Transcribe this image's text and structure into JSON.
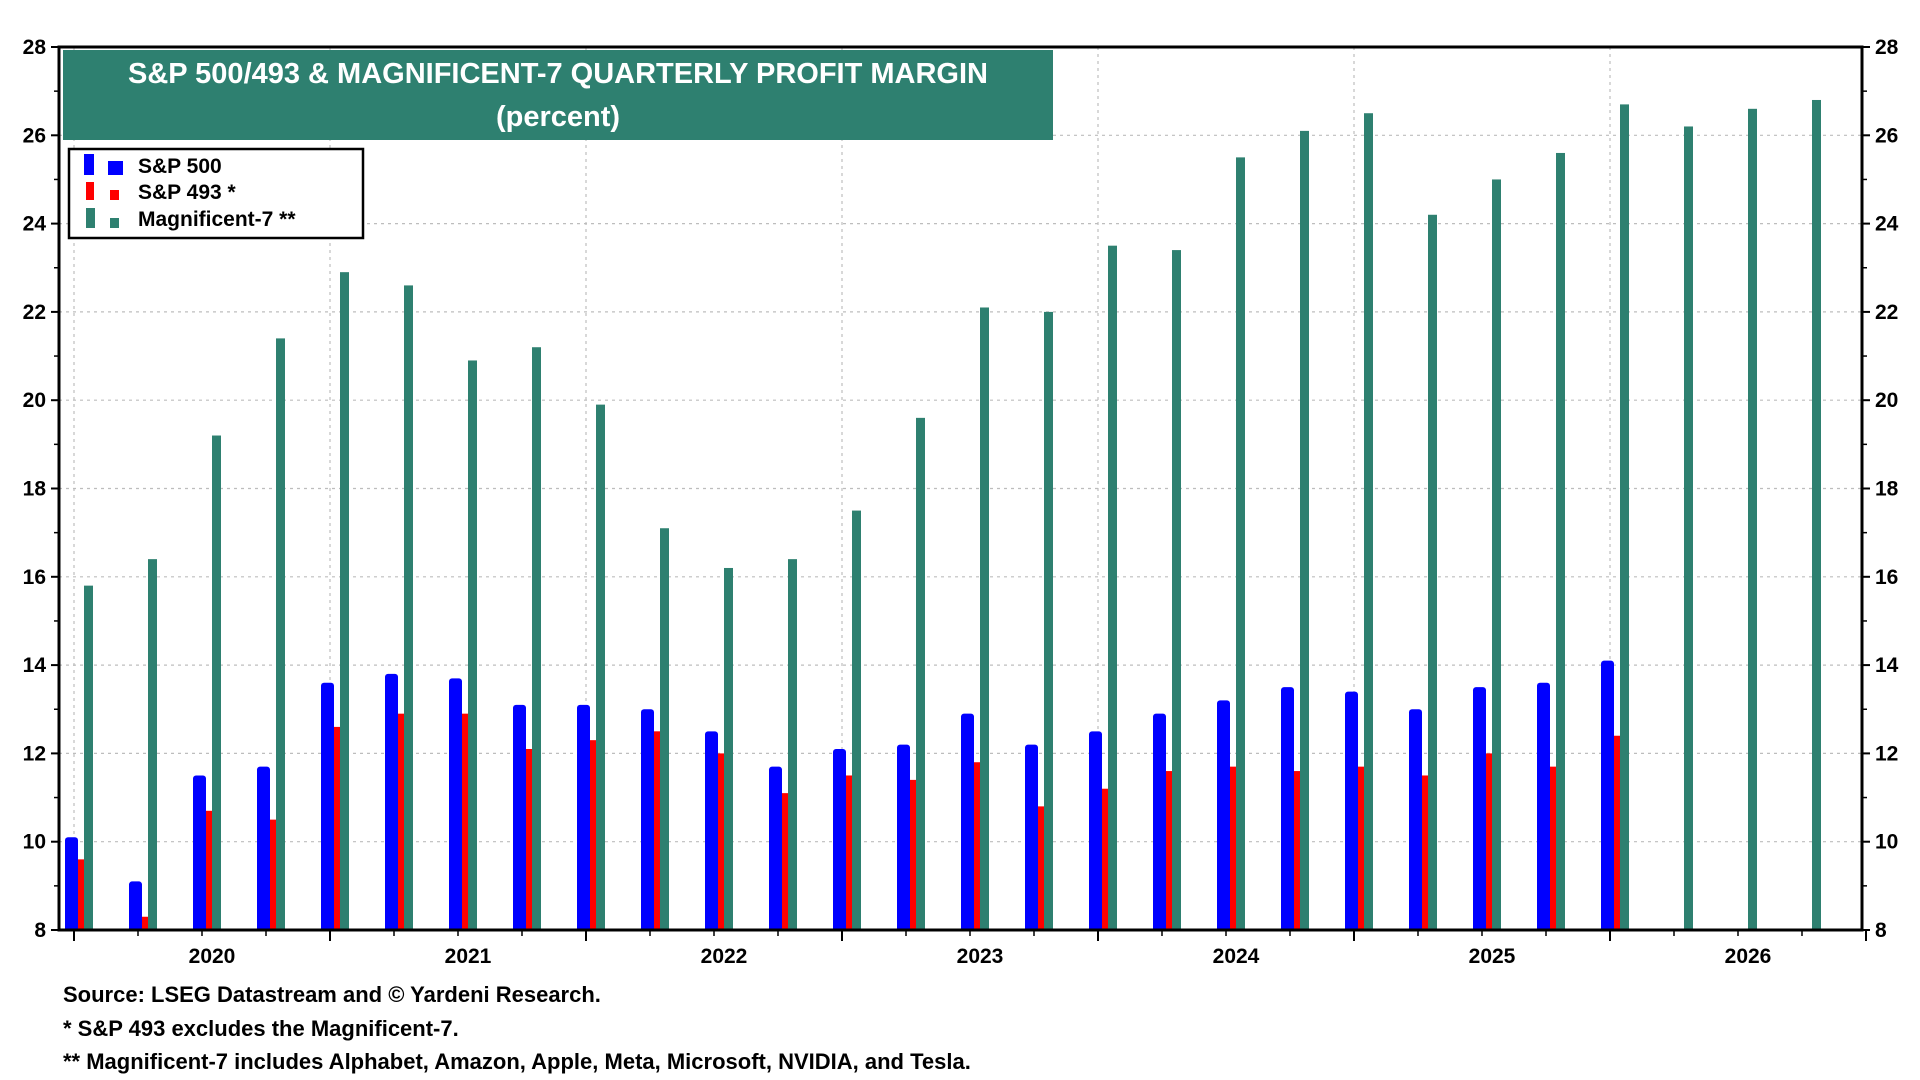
{
  "chart_data": {
    "type": "bar",
    "title": "S&P 500/493 & MAGNIFICENT-7 QUARTERLY PROFIT MARGIN",
    "subtitle": "(percent)",
    "ylim": [
      8,
      28
    ],
    "yticks": [
      8,
      10,
      12,
      14,
      16,
      18,
      20,
      22,
      24,
      26,
      28
    ],
    "years": [
      "2020",
      "2021",
      "2022",
      "2023",
      "2024",
      "2025",
      "2026"
    ],
    "x_quarters": [
      "2020Q1",
      "2020Q2",
      "2020Q3",
      "2020Q4",
      "2021Q1",
      "2021Q2",
      "2021Q3",
      "2021Q4",
      "2022Q1",
      "2022Q2",
      "2022Q3",
      "2022Q4",
      "2023Q1",
      "2023Q2",
      "2023Q3",
      "2023Q4",
      "2024Q1",
      "2024Q2",
      "2024Q3",
      "2024Q4",
      "2025Q1",
      "2025Q2",
      "2025Q3",
      "2025Q4",
      "2026Q1",
      "2026Q2",
      "2026Q3",
      "2026Q4"
    ],
    "grid": true,
    "legend_position": "top-left",
    "series": [
      {
        "name": "S&P 500",
        "color": "#0000ff",
        "values": [
          10.1,
          9.1,
          11.5,
          11.7,
          13.6,
          13.8,
          13.7,
          13.1,
          13.1,
          13.0,
          12.5,
          11.7,
          12.1,
          12.2,
          12.9,
          12.2,
          12.5,
          12.9,
          13.2,
          13.5,
          13.4,
          13.0,
          13.5,
          13.6,
          14.1,
          null,
          null,
          null
        ]
      },
      {
        "name": "S&P 493 *",
        "color": "#ff0000",
        "values": [
          9.6,
          8.3,
          10.7,
          10.5,
          12.6,
          12.9,
          12.9,
          12.1,
          12.3,
          12.5,
          12.0,
          11.1,
          11.5,
          11.4,
          11.8,
          10.8,
          11.2,
          11.6,
          11.7,
          11.6,
          11.7,
          11.5,
          12.0,
          11.7,
          12.4,
          null,
          null,
          null
        ]
      },
      {
        "name": "Magnificent-7 **",
        "color": "#2e8070",
        "values": [
          15.8,
          16.4,
          19.2,
          21.4,
          22.9,
          22.6,
          20.9,
          21.2,
          19.9,
          17.1,
          16.2,
          16.4,
          17.5,
          19.6,
          22.1,
          22.0,
          23.5,
          23.4,
          25.5,
          26.1,
          26.5,
          24.2,
          25.0,
          25.6,
          26.7,
          26.2,
          26.6,
          26.8
        ]
      }
    ],
    "notes": [
      "Source: LSEG Datastream and © Yardeni Research.",
      "* S&P 493 excludes the Magnificent-7.",
      "** Magnificent-7 includes Alphabet, Amazon, Apple, Meta, Microsoft, NVIDIA, and Tesla."
    ]
  },
  "colors": {
    "title_bg": "#2e8070",
    "title_fg": "#ffffff",
    "sp500": "#0000ff",
    "sp493": "#ff0000",
    "mag7": "#2e8070"
  }
}
